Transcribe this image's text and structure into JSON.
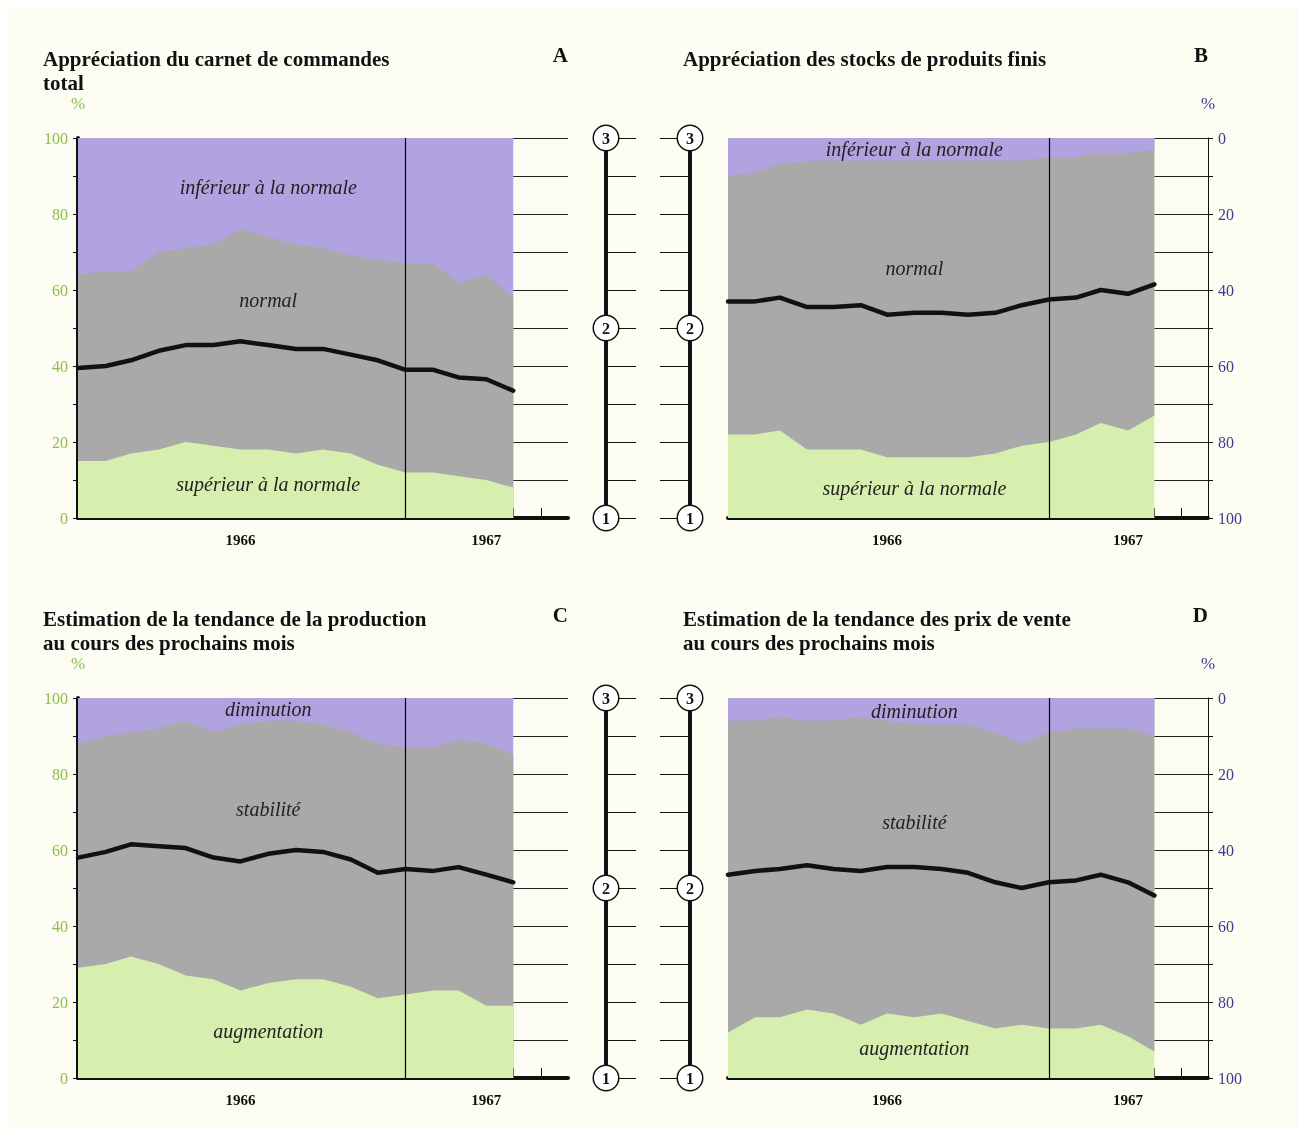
{
  "chart_data": [
    {
      "type": "area",
      "title": "Appréciation du carnet de commandes total",
      "annotations": [
        "A"
      ],
      "ylabel": "%",
      "stacked": true,
      "grid": "y",
      "x": [
        "1966-01",
        "1966-02",
        "1966-03",
        "1966-04",
        "1966-05",
        "1966-06",
        "1966-07",
        "1966-08",
        "1966-09",
        "1966-10",
        "1966-11",
        "1966-12",
        "1967-01",
        "1967-02",
        "1967-03",
        "1967-04",
        "1967-05"
      ],
      "xlim": [
        "1966-01",
        "1967-07"
      ],
      "xticks": [
        {
          "value": "1966-02",
          "label": null
        },
        {
          "value": "1966-03",
          "label": null
        },
        {
          "value": "1966-04",
          "label": null
        },
        {
          "value": "1966-05",
          "label": null
        },
        {
          "value": "1966-06",
          "label": null
        },
        {
          "value": "1966-07",
          "label": "1966"
        },
        {
          "value": "1966-08",
          "label": null
        },
        {
          "value": "1966-09",
          "label": null
        },
        {
          "value": "1966-10",
          "label": null
        },
        {
          "value": "1966-11",
          "label": null
        },
        {
          "value": "1966-12",
          "label": null
        },
        {
          "value": "1967-01",
          "label": null
        },
        {
          "value": "1967-02",
          "label": null
        },
        {
          "value": "1967-03",
          "label": null
        },
        {
          "value": "1967-04",
          "label": "1967"
        },
        {
          "value": "1967-05",
          "label": null
        },
        {
          "value": "1967-06",
          "label": null
        }
      ],
      "ylim": [
        0,
        100
      ],
      "yticks": [
        0,
        {
          "value": 10,
          "label": null
        },
        20,
        {
          "value": 30,
          "label": null
        },
        40,
        {
          "value": 50,
          "label": null
        },
        60,
        {
          "value": 70,
          "label": null
        },
        80,
        {
          "value": 90,
          "label": null
        },
        100
      ],
      "y2lim": [
        1,
        3
      ],
      "y2ticks": [
        1,
        {
          "value": 1.2,
          "label": null
        },
        {
          "value": 1.4,
          "label": null
        },
        {
          "value": 1.6,
          "label": null
        },
        {
          "value": 1.8,
          "label": null
        },
        2,
        {
          "value": 2.2,
          "label": null
        },
        {
          "value": 2.4,
          "label": null
        },
        {
          "value": 2.6,
          "label": null
        },
        {
          "value": 2.8,
          "label": null
        },
        3
      ],
      "ref_lines": [
        {
          "axis": "x",
          "value": "1967-01",
          "color": "#000000"
        }
      ],
      "series": [
        {
          "name": "supérieur à la normale",
          "color": "#d6eeae",
          "values": [
            15,
            15,
            17,
            18,
            20,
            19,
            18,
            18,
            17,
            18,
            17,
            14,
            12,
            12,
            11,
            10,
            8
          ]
        },
        {
          "name": "normal",
          "color": "#a9a9a9",
          "values": [
            49,
            50,
            48,
            52,
            51,
            53,
            58,
            56,
            55,
            53,
            52,
            54,
            55,
            55,
            51,
            54,
            50
          ]
        },
        {
          "name": "inférieur à la normale",
          "color": "#b0a3e0",
          "values": [
            36,
            35,
            35,
            30,
            29,
            28,
            24,
            26,
            28,
            29,
            31,
            32,
            33,
            33,
            38,
            36,
            42
          ]
        },
        {
          "type": "line",
          "axis": "y2",
          "color": "#111111",
          "values": [
            1.79,
            1.8,
            1.83,
            1.88,
            1.91,
            1.91,
            1.93,
            1.91,
            1.89,
            1.89,
            1.86,
            1.83,
            1.78,
            1.78,
            1.74,
            1.73,
            1.67
          ]
        }
      ]
    },
    {
      "type": "area",
      "title": "Appréciation des stocks de produits finis",
      "annotations": [
        "B"
      ],
      "y2label": "%",
      "stacked": true,
      "grid": "y",
      "x": [
        "1966-01",
        "1966-02",
        "1966-03",
        "1966-04",
        "1966-05",
        "1966-06",
        "1966-07",
        "1966-08",
        "1966-09",
        "1966-10",
        "1966-11",
        "1966-12",
        "1967-01",
        "1967-02",
        "1967-03",
        "1967-04",
        "1967-05"
      ],
      "xlim": [
        "1966-01",
        "1967-07"
      ],
      "xticks": [
        {
          "value": "1966-02",
          "label": null
        },
        {
          "value": "1966-03",
          "label": null
        },
        {
          "value": "1966-04",
          "label": null
        },
        {
          "value": "1966-05",
          "label": null
        },
        {
          "value": "1966-06",
          "label": null
        },
        {
          "value": "1966-07",
          "label": "1966"
        },
        {
          "value": "1966-08",
          "label": null
        },
        {
          "value": "1966-09",
          "label": null
        },
        {
          "value": "1966-10",
          "label": null
        },
        {
          "value": "1966-11",
          "label": null
        },
        {
          "value": "1966-12",
          "label": null
        },
        {
          "value": "1967-01",
          "label": null
        },
        {
          "value": "1967-02",
          "label": null
        },
        {
          "value": "1967-03",
          "label": null
        },
        {
          "value": "1967-04",
          "label": "1967"
        },
        {
          "value": "1967-05",
          "label": null
        },
        {
          "value": "1967-06",
          "label": null
        }
      ],
      "ylim": [
        1,
        3
      ],
      "yticks": [
        1,
        {
          "value": 1.2,
          "label": null
        },
        {
          "value": 1.4,
          "label": null
        },
        {
          "value": 1.6,
          "label": null
        },
        {
          "value": 1.8,
          "label": null
        },
        2,
        {
          "value": 2.2,
          "label": null
        },
        {
          "value": 2.4,
          "label": null
        },
        {
          "value": 2.6,
          "label": null
        },
        {
          "value": 2.8,
          "label": null
        },
        3
      ],
      "y2lim": [
        100,
        0
      ],
      "y2ticks": [
        0,
        {
          "value": 10,
          "label": null
        },
        20,
        {
          "value": 30,
          "label": null
        },
        40,
        {
          "value": 50,
          "label": null
        },
        60,
        {
          "value": 70,
          "label": null
        },
        80,
        {
          "value": 90,
          "label": null
        },
        100
      ],
      "ref_lines": [
        {
          "axis": "x",
          "value": "1967-01",
          "color": "#000000"
        }
      ],
      "series": [
        {
          "name": "inférieur à la normale",
          "color": "#b0a3e0",
          "axis": "y2",
          "values": [
            10,
            9,
            7,
            6,
            6,
            6,
            6,
            6,
            6,
            6,
            6,
            6,
            5,
            5,
            4,
            4,
            3
          ]
        },
        {
          "name": "normal",
          "color": "#a9a9a9",
          "axis": "y2",
          "values": [
            68,
            69,
            70,
            76,
            76,
            76,
            78,
            78,
            78,
            78,
            77,
            75,
            75,
            73,
            71,
            73,
            70
          ]
        },
        {
          "name": "supérieur à la normale",
          "color": "#d6eeae",
          "axis": "y2",
          "values": [
            22,
            22,
            23,
            18,
            18,
            18,
            16,
            16,
            16,
            16,
            17,
            19,
            20,
            22,
            25,
            23,
            27
          ]
        },
        {
          "type": "line",
          "color": "#111111",
          "values": [
            2.14,
            2.14,
            2.16,
            2.11,
            2.11,
            2.12,
            2.07,
            2.08,
            2.08,
            2.07,
            2.08,
            2.12,
            2.15,
            2.16,
            2.2,
            2.18,
            2.23
          ]
        }
      ]
    },
    {
      "type": "area",
      "title": "Estimation de la tendance de la production au cours des prochains mois",
      "annotations": [
        "C"
      ],
      "ylabel": "%",
      "stacked": true,
      "grid": "y",
      "x": [
        "1966-01",
        "1966-02",
        "1966-03",
        "1966-04",
        "1966-05",
        "1966-06",
        "1966-07",
        "1966-08",
        "1966-09",
        "1966-10",
        "1966-11",
        "1966-12",
        "1967-01",
        "1967-02",
        "1967-03",
        "1967-04",
        "1967-05"
      ],
      "xlim": [
        "1966-01",
        "1967-07"
      ],
      "xticks": [
        {
          "value": "1966-02",
          "label": null
        },
        {
          "value": "1966-03",
          "label": null
        },
        {
          "value": "1966-04",
          "label": null
        },
        {
          "value": "1966-05",
          "label": null
        },
        {
          "value": "1966-06",
          "label": null
        },
        {
          "value": "1966-07",
          "label": "1966"
        },
        {
          "value": "1966-08",
          "label": null
        },
        {
          "value": "1966-09",
          "label": null
        },
        {
          "value": "1966-10",
          "label": null
        },
        {
          "value": "1966-11",
          "label": null
        },
        {
          "value": "1966-12",
          "label": null
        },
        {
          "value": "1967-01",
          "label": null
        },
        {
          "value": "1967-02",
          "label": null
        },
        {
          "value": "1967-03",
          "label": null
        },
        {
          "value": "1967-04",
          "label": "1967"
        },
        {
          "value": "1967-05",
          "label": null
        },
        {
          "value": "1967-06",
          "label": null
        }
      ],
      "ylim": [
        0,
        100
      ],
      "yticks": [
        0,
        {
          "value": 10,
          "label": null
        },
        20,
        {
          "value": 30,
          "label": null
        },
        40,
        {
          "value": 50,
          "label": null
        },
        60,
        {
          "value": 70,
          "label": null
        },
        80,
        {
          "value": 90,
          "label": null
        },
        100
      ],
      "y2lim": [
        1,
        3
      ],
      "y2ticks": [
        1,
        {
          "value": 1.2,
          "label": null
        },
        {
          "value": 1.4,
          "label": null
        },
        {
          "value": 1.6,
          "label": null
        },
        {
          "value": 1.8,
          "label": null
        },
        2,
        {
          "value": 2.2,
          "label": null
        },
        {
          "value": 2.4,
          "label": null
        },
        {
          "value": 2.6,
          "label": null
        },
        {
          "value": 2.8,
          "label": null
        },
        3
      ],
      "ref_lines": [
        {
          "axis": "x",
          "value": "1967-01",
          "color": "#000000"
        }
      ],
      "series": [
        {
          "name": "augmentation",
          "color": "#d6eeae",
          "values": [
            29,
            30,
            32,
            30,
            27,
            26,
            23,
            25,
            26,
            26,
            24,
            21,
            22,
            23,
            23,
            19,
            19
          ]
        },
        {
          "name": "stabilité",
          "color": "#a9a9a9",
          "values": [
            59,
            60,
            59,
            62,
            67,
            65,
            70,
            69,
            68,
            67,
            67,
            67,
            65,
            64,
            66,
            69,
            66
          ]
        },
        {
          "name": "diminution",
          "color": "#b0a3e0",
          "values": [
            12,
            10,
            9,
            8,
            6,
            9,
            7,
            6,
            6,
            7,
            9,
            12,
            13,
            13,
            11,
            12,
            15
          ]
        },
        {
          "type": "line",
          "axis": "y2",
          "color": "#111111",
          "values": [
            2.16,
            2.19,
            2.23,
            2.22,
            2.21,
            2.16,
            2.14,
            2.18,
            2.2,
            2.19,
            2.15,
            2.08,
            2.1,
            2.09,
            2.11,
            2.07,
            2.03
          ]
        }
      ]
    },
    {
      "type": "area",
      "title": "Estimation de la tendance des prix de vente au cours des prochains mois",
      "annotations": [
        "D"
      ],
      "y2label": "%",
      "stacked": true,
      "grid": "y",
      "x": [
        "1966-01",
        "1966-02",
        "1966-03",
        "1966-04",
        "1966-05",
        "1966-06",
        "1966-07",
        "1966-08",
        "1966-09",
        "1966-10",
        "1966-11",
        "1966-12",
        "1967-01",
        "1967-02",
        "1967-03",
        "1967-04",
        "1967-05"
      ],
      "xlim": [
        "1966-01",
        "1967-07"
      ],
      "xticks": [
        {
          "value": "1966-02",
          "label": null
        },
        {
          "value": "1966-03",
          "label": null
        },
        {
          "value": "1966-04",
          "label": null
        },
        {
          "value": "1966-05",
          "label": null
        },
        {
          "value": "1966-06",
          "label": null
        },
        {
          "value": "1966-07",
          "label": "1966"
        },
        {
          "value": "1966-08",
          "label": null
        },
        {
          "value": "1966-09",
          "label": null
        },
        {
          "value": "1966-10",
          "label": null
        },
        {
          "value": "1966-11",
          "label": null
        },
        {
          "value": "1966-12",
          "label": null
        },
        {
          "value": "1967-01",
          "label": null
        },
        {
          "value": "1967-02",
          "label": null
        },
        {
          "value": "1967-03",
          "label": null
        },
        {
          "value": "1967-04",
          "label": "1967"
        },
        {
          "value": "1967-05",
          "label": null
        },
        {
          "value": "1967-06",
          "label": null
        }
      ],
      "ylim": [
        1,
        3
      ],
      "yticks": [
        1,
        {
          "value": 1.2,
          "label": null
        },
        {
          "value": 1.4,
          "label": null
        },
        {
          "value": 1.6,
          "label": null
        },
        {
          "value": 1.8,
          "label": null
        },
        2,
        {
          "value": 2.2,
          "label": null
        },
        {
          "value": 2.4,
          "label": null
        },
        {
          "value": 2.6,
          "label": null
        },
        {
          "value": 2.8,
          "label": null
        },
        3
      ],
      "y2lim": [
        100,
        0
      ],
      "y2ticks": [
        0,
        {
          "value": 10,
          "label": null
        },
        20,
        {
          "value": 30,
          "label": null
        },
        40,
        {
          "value": 50,
          "label": null
        },
        60,
        {
          "value": 70,
          "label": null
        },
        80,
        {
          "value": 90,
          "label": null
        },
        100
      ],
      "ref_lines": [
        {
          "axis": "x",
          "value": "1967-01",
          "color": "#000000"
        }
      ],
      "series": [
        {
          "name": "diminution",
          "color": "#b0a3e0",
          "axis": "y2",
          "values": [
            6,
            6,
            5,
            6,
            6,
            5,
            6,
            7,
            7,
            7,
            9,
            12,
            9,
            8,
            8,
            8,
            10
          ]
        },
        {
          "name": "stabilité",
          "color": "#a9a9a9",
          "axis": "y2",
          "values": [
            82,
            78,
            79,
            76,
            77,
            81,
            77,
            77,
            76,
            78,
            78,
            74,
            78,
            79,
            78,
            81,
            83
          ]
        },
        {
          "name": "augmentation",
          "color": "#d6eeae",
          "axis": "y2",
          "values": [
            12,
            16,
            16,
            18,
            17,
            14,
            17,
            16,
            17,
            15,
            13,
            14,
            13,
            13,
            14,
            11,
            7
          ]
        },
        {
          "type": "line",
          "color": "#111111",
          "values": [
            2.07,
            2.09,
            2.1,
            2.12,
            2.1,
            2.09,
            2.11,
            2.11,
            2.1,
            2.08,
            2.03,
            2.0,
            2.03,
            2.04,
            2.07,
            2.03,
            1.96
          ]
        }
      ]
    }
  ]
}
